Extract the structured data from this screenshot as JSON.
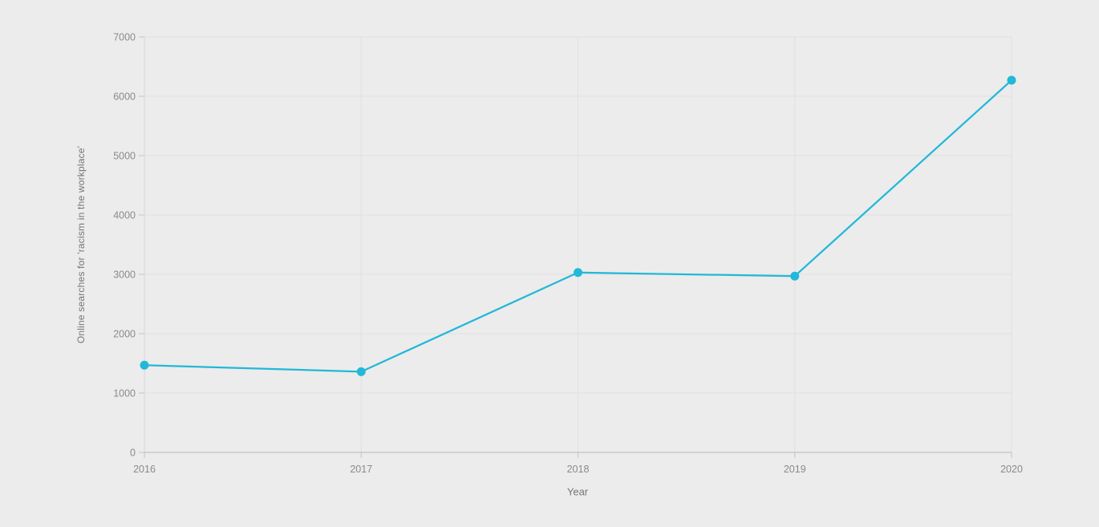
{
  "chart_data": {
    "type": "line",
    "title": "",
    "xlabel": "Year",
    "ylabel": "Online searches for 'racism in the workplace'",
    "categories": [
      "2016",
      "2017",
      "2018",
      "2019",
      "2020"
    ],
    "series": [
      {
        "name": "Online searches for 'racism in the workplace'",
        "values": [
          1470,
          1360,
          3030,
          2970,
          6270
        ],
        "color": "#22b8d8"
      }
    ],
    "ylim": [
      0,
      7000
    ],
    "yticks": [
      0,
      1000,
      2000,
      3000,
      4000,
      5000,
      6000,
      7000
    ],
    "grid": "on",
    "legend_position": "none",
    "marker": "circle"
  },
  "colors": {
    "background": "#ececec",
    "gridline": "#e0e0e0",
    "left_axis_line": "#d6d6d6",
    "axis_line": "#b9b9b9",
    "tick_mark": "#c4c4c4",
    "tick_label": "#8a8a8a",
    "axis_title": "#757575"
  }
}
